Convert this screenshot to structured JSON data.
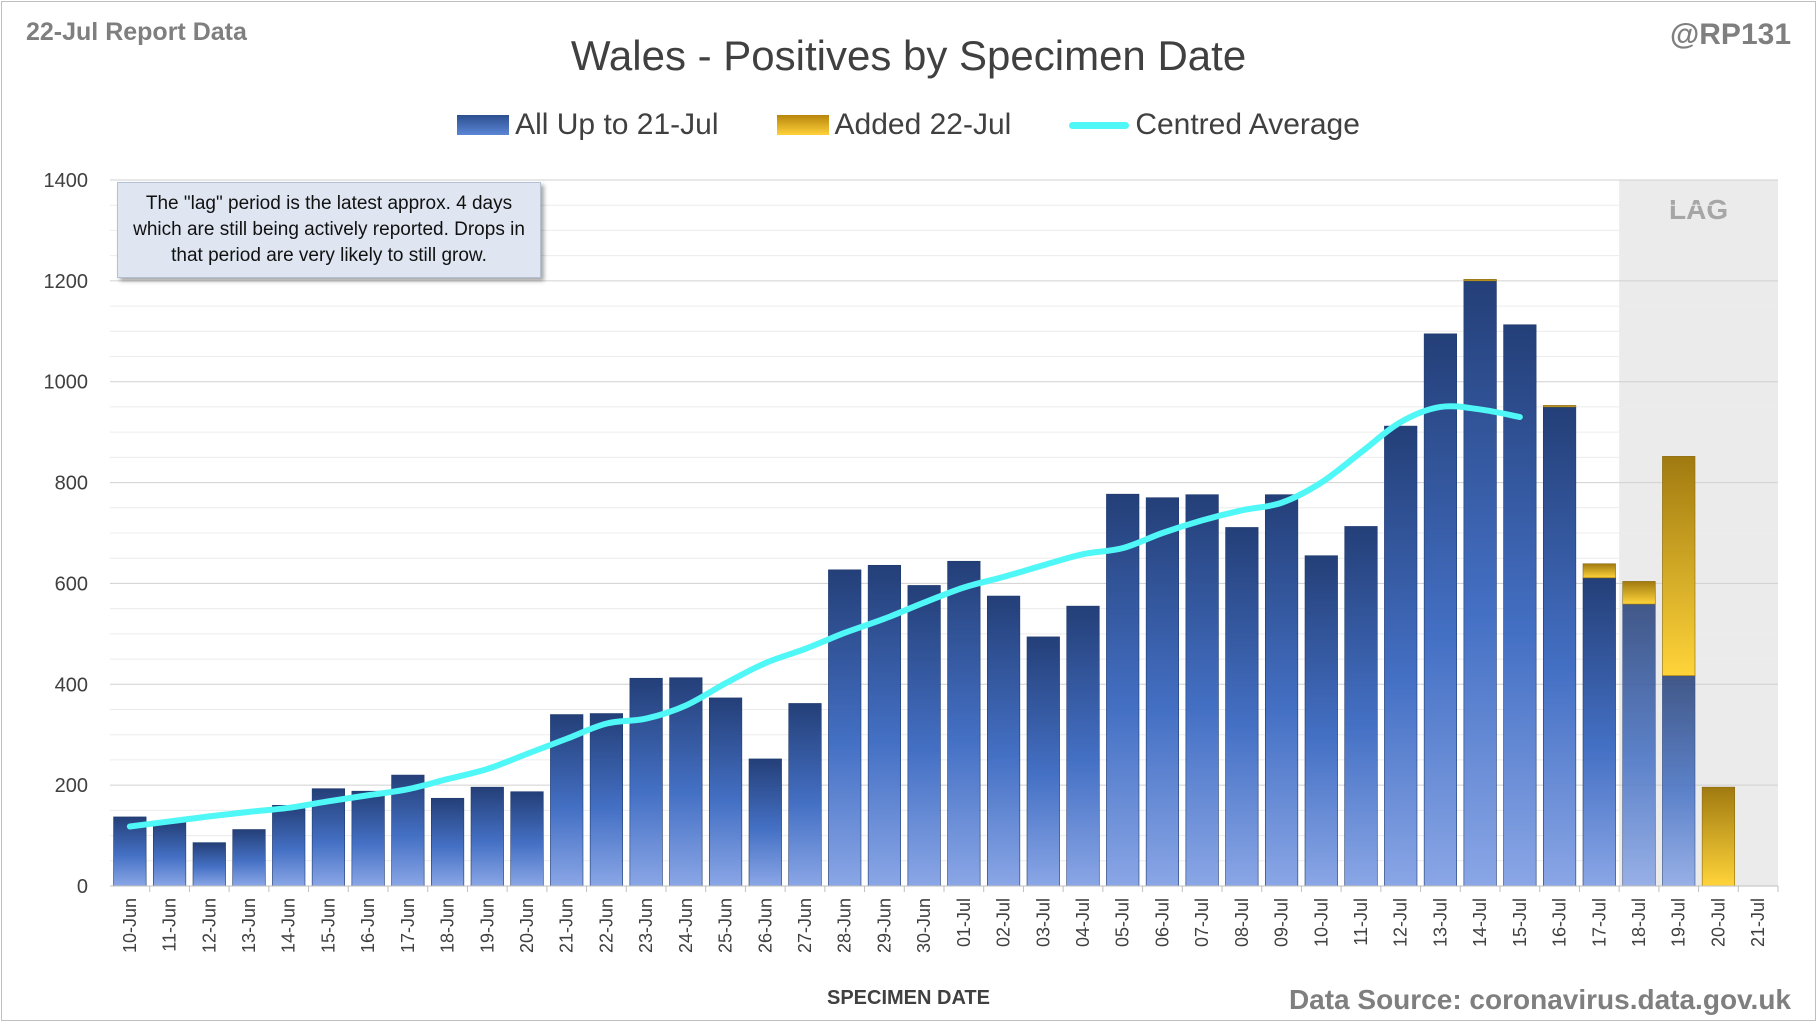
{
  "header": {
    "report_label": "22-Jul Report Data",
    "handle": "@RP131"
  },
  "note": {
    "text": "The \"lag\" period is the latest approx. 4 days which are still being actively reported.  Drops in that period are very likely to still grow."
  },
  "footer": {
    "source": "Data Source: coronavirus.data.gov.uk"
  },
  "colors": {
    "bar_blue": "#2c4f8f",
    "bar_blue_light": "#7d9be0",
    "bar_gold": "#f0c020",
    "line": "#4ff7f7",
    "lag_band": "#ebebeb"
  },
  "chart_data": {
    "type": "bar",
    "title": "Wales - Positives by Specimen Date",
    "xlabel": "SPECIMEN DATE",
    "ylabel": "",
    "ylim": [
      0,
      1400
    ],
    "yticks": [
      0,
      200,
      400,
      600,
      800,
      1000,
      1200,
      1400
    ],
    "grid": true,
    "legend_position": "top",
    "stacked": true,
    "lag_label": "LAG",
    "lag_categories": [
      "18-Jul",
      "19-Jul",
      "20-Jul",
      "21-Jul"
    ],
    "categories": [
      "10-Jun",
      "11-Jun",
      "12-Jun",
      "13-Jun",
      "14-Jun",
      "15-Jun",
      "16-Jun",
      "17-Jun",
      "18-Jun",
      "19-Jun",
      "20-Jun",
      "21-Jun",
      "22-Jun",
      "23-Jun",
      "24-Jun",
      "25-Jun",
      "26-Jun",
      "27-Jun",
      "28-Jun",
      "29-Jun",
      "30-Jun",
      "01-Jul",
      "02-Jul",
      "03-Jul",
      "04-Jul",
      "05-Jul",
      "06-Jul",
      "07-Jul",
      "08-Jul",
      "09-Jul",
      "10-Jul",
      "11-Jul",
      "12-Jul",
      "13-Jul",
      "14-Jul",
      "15-Jul",
      "16-Jul",
      "17-Jul",
      "18-Jul",
      "19-Jul",
      "20-Jul",
      "21-Jul"
    ],
    "series": [
      {
        "name": "All Up to 21-Jul",
        "kind": "bar",
        "values": [
          137,
          127,
          86,
          112,
          160,
          193,
          188,
          220,
          174,
          196,
          187,
          340,
          342,
          412,
          413,
          373,
          252,
          362,
          627,
          636,
          596,
          644,
          575,
          494,
          555,
          777,
          770,
          776,
          711,
          776,
          655,
          713,
          912,
          1095,
          1200,
          1113,
          950,
          611,
          559,
          417,
          0,
          0
        ]
      },
      {
        "name": "Added 22-Jul",
        "kind": "bar",
        "values": [
          0,
          0,
          0,
          0,
          0,
          0,
          0,
          0,
          0,
          0,
          0,
          0,
          0,
          0,
          0,
          0,
          0,
          0,
          0,
          0,
          0,
          0,
          0,
          0,
          0,
          0,
          0,
          0,
          0,
          0,
          0,
          0,
          0,
          0,
          3,
          0,
          3,
          28,
          45,
          435,
          196,
          0
        ]
      },
      {
        "name": "Centred Average",
        "kind": "line",
        "values": [
          118,
          128,
          138,
          147,
          155,
          168,
          180,
          192,
          212,
          232,
          262,
          292,
          322,
          332,
          358,
          402,
          442,
          470,
          502,
          530,
          562,
          592,
          613,
          636,
          658,
          670,
          700,
          725,
          745,
          760,
          800,
          860,
          920,
          950,
          945,
          930,
          null,
          null,
          null,
          null,
          null,
          null
        ]
      }
    ]
  }
}
